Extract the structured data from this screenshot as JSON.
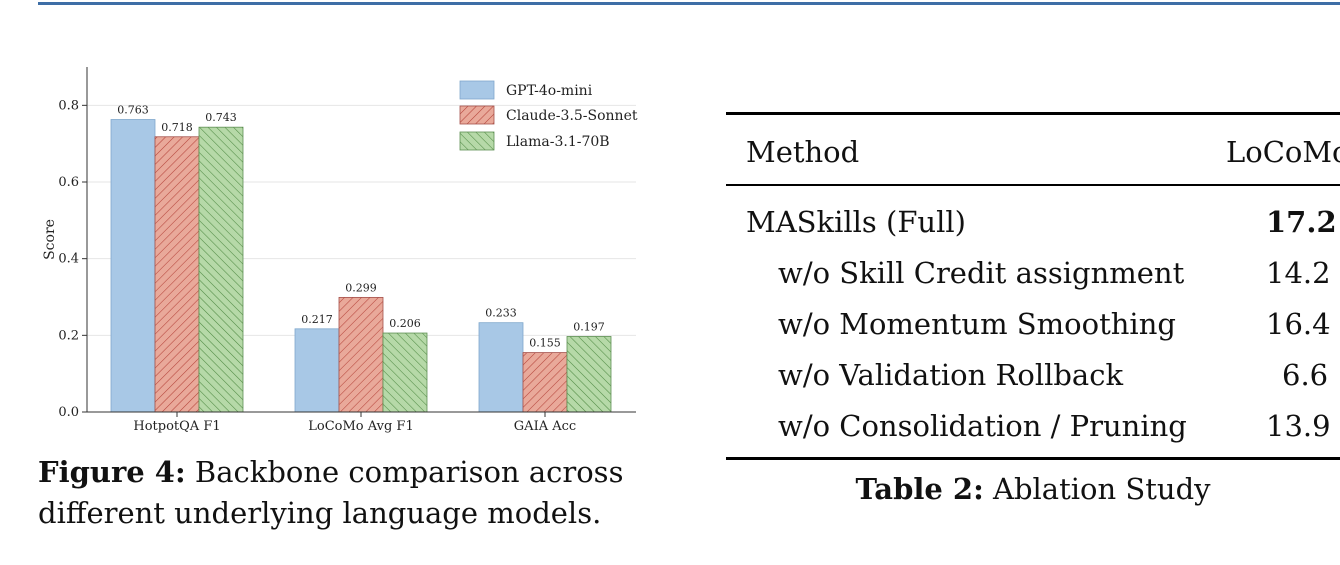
{
  "figure": {
    "caption_label": "Figure 4:",
    "caption_text": "Backbone comparison across different underlying language models."
  },
  "chart_data": {
    "type": "bar",
    "categories": [
      "HotpotQA F1",
      "LoCoMo Avg F1",
      "GAIA Acc"
    ],
    "ylabel": "Score",
    "ylim": [
      0,
      0.9
    ],
    "yticks": [
      0.0,
      0.2,
      0.4,
      0.6,
      0.8
    ],
    "grid": true,
    "legend_position": "top-right",
    "series": [
      {
        "name": "GPT-4o-mini",
        "values": [
          0.763,
          0.217,
          0.233
        ],
        "color": "#a8c8e6",
        "pattern": "none"
      },
      {
        "name": "Claude-3.5-Sonnet",
        "values": [
          0.718,
          0.299,
          0.155
        ],
        "color": "#e9a99a",
        "pattern": "hatch-forward"
      },
      {
        "name": "Llama-3.1-70B",
        "values": [
          0.743,
          0.206,
          0.197
        ],
        "color": "#b6d9a8",
        "pattern": "hatch-back"
      }
    ]
  },
  "table": {
    "caption_label": "Table 2:",
    "caption_text": "Ablation Study",
    "headers": [
      "Method",
      "LoCoMo"
    ],
    "rows": [
      {
        "method": "MASkills (Full)",
        "value": "17.2",
        "bold": true
      },
      {
        "method": "w/o Skill Credit assignment",
        "value": "14.2",
        "bold": false
      },
      {
        "method": "w/o Momentum Smoothing",
        "value": "16.4",
        "bold": false
      },
      {
        "method": "w/o Validation Rollback",
        "value": "6.6",
        "bold": false
      },
      {
        "method": "w/o Consolidation / Pruning",
        "value": "13.9",
        "bold": false
      }
    ]
  }
}
